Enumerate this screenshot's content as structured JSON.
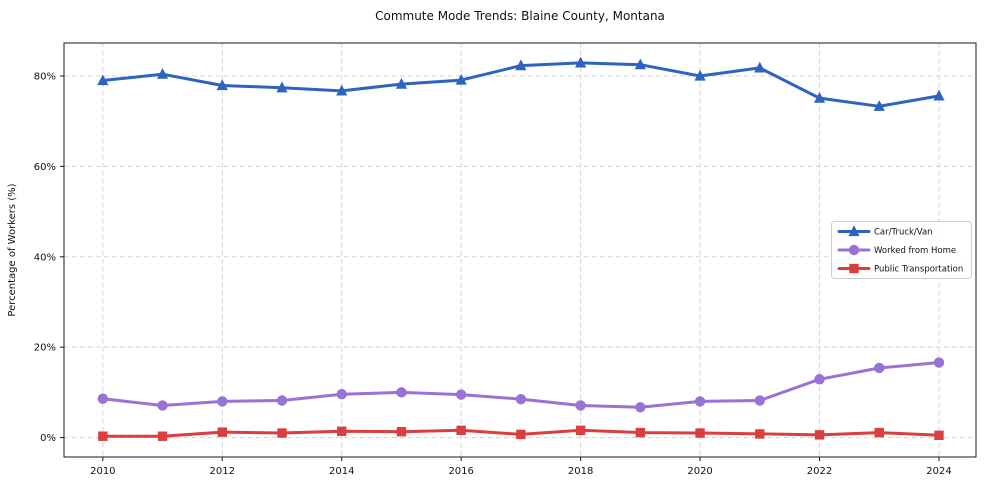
{
  "chart_data": {
    "type": "line",
    "title": "Commute Mode Trends: Blaine County, Montana",
    "xlabel": "",
    "ylabel": "Percentage of Workers (%)",
    "x": [
      2010,
      2011,
      2012,
      2013,
      2014,
      2015,
      2016,
      2017,
      2018,
      2019,
      2020,
      2021,
      2022,
      2023,
      2024
    ],
    "series": [
      {
        "name": "Car/Truck/Van",
        "color": "#2e63bf",
        "marker": "triangle",
        "values": [
          79.0,
          80.4,
          77.9,
          77.4,
          76.7,
          78.2,
          79.1,
          82.3,
          82.9,
          82.5,
          80.0,
          81.8,
          75.1,
          73.3,
          75.6
        ]
      },
      {
        "name": "Worked from Home",
        "color": "#9a71d4",
        "marker": "circle",
        "values": [
          8.6,
          7.1,
          8.0,
          8.2,
          9.6,
          10.0,
          9.5,
          8.5,
          7.1,
          6.7,
          8.0,
          8.2,
          12.9,
          15.4,
          16.6
        ]
      },
      {
        "name": "Public Transportation",
        "color": "#da3e3e",
        "marker": "square",
        "values": [
          0.3,
          0.3,
          1.2,
          1.0,
          1.4,
          1.3,
          1.6,
          0.7,
          1.6,
          1.1,
          1.0,
          0.8,
          0.6,
          1.1,
          0.5
        ]
      }
    ],
    "xticks": [
      2010,
      2012,
      2014,
      2016,
      2018,
      2020,
      2022,
      2024
    ],
    "yticks": [
      0,
      20,
      40,
      60,
      80
    ],
    "ytick_format": "{v}%",
    "xlim": [
      2009.35,
      2024.62
    ],
    "ylim": [
      -4.3,
      87.3
    ],
    "grid": true,
    "legend_position": "center right"
  },
  "colors": {
    "grid": "#d3d3d3",
    "spine": "#1a1a1a",
    "background": "#ffffff",
    "legend_border": "#cccccc",
    "legend_background": "#ffffff"
  }
}
